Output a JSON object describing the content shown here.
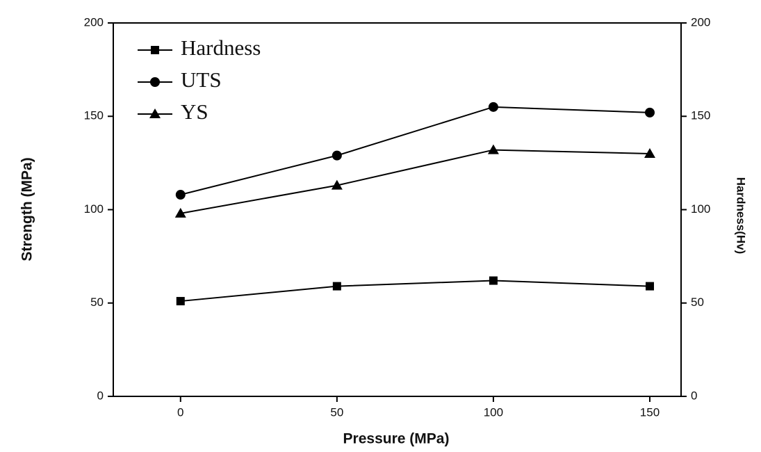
{
  "chart_data": {
    "type": "line",
    "xlabel": "Pressure (MPa)",
    "ylabel": "Strength (MPa)",
    "y2label": "Hardness(Hv)",
    "x": [
      0,
      50,
      100,
      150
    ],
    "xlim": [
      -21.5,
      160
    ],
    "xticks": [
      0,
      50,
      100,
      150
    ],
    "ylim": [
      0,
      200
    ],
    "yticks": [
      0,
      50,
      100,
      150,
      200
    ],
    "y2lim": [
      0,
      200
    ],
    "y2ticks": [
      0,
      50,
      100,
      150,
      200
    ],
    "legend": "upper left",
    "series": [
      {
        "name": "Hardness",
        "color": "#000000",
        "marker": "square",
        "axis": "y2",
        "values": [
          51,
          59,
          62,
          59
        ]
      },
      {
        "name": "UTS",
        "color": "#000000",
        "marker": "circle",
        "values": [
          108,
          129,
          155,
          152
        ]
      },
      {
        "name": "YS",
        "color": "#000000",
        "marker": "triangle",
        "values": [
          98,
          113,
          132,
          130
        ]
      }
    ]
  }
}
